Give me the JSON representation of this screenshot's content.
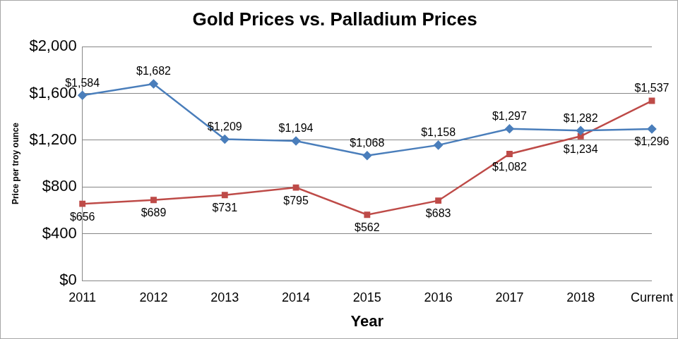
{
  "chart_data": {
    "type": "line",
    "title": "Gold Prices vs. Palladium Prices",
    "x_label": "Year",
    "y_label": "Price per troy ounce",
    "categories": [
      "2011",
      "2012",
      "2013",
      "2014",
      "2015",
      "2016",
      "2017",
      "2018",
      "Current"
    ],
    "series": [
      {
        "color": "#4A7EBB",
        "marker": "diamond",
        "values": [
          1584,
          1682,
          1209,
          1194,
          1068,
          1158,
          1297,
          1282,
          1296
        ],
        "value_labels": [
          "$1,584",
          "$1,682",
          "$1,209",
          "$1,194",
          "$1,068",
          "$1,158",
          "$1,297",
          "$1,282",
          "$1,296"
        ]
      },
      {
        "color": "#BE4B48",
        "marker": "square",
        "values": [
          656,
          689,
          731,
          795,
          562,
          683,
          1082,
          1234,
          1537
        ],
        "value_labels": [
          "$656",
          "$689",
          "$731",
          "$795",
          "$562",
          "$683",
          "$1,082",
          "$1,234",
          "$1,537"
        ]
      }
    ],
    "ylim": [
      0,
      2000
    ],
    "yticks": [
      {
        "value": 0,
        "label": "$0"
      },
      {
        "value": 400,
        "label": "$400"
      },
      {
        "value": 800,
        "label": "$800"
      },
      {
        "value": 1200,
        "label": "$1,200"
      },
      {
        "value": 1600,
        "label": "$1,600"
      },
      {
        "value": 2000,
        "label": "$2,000"
      }
    ],
    "grid": true,
    "data_labels": true
  }
}
